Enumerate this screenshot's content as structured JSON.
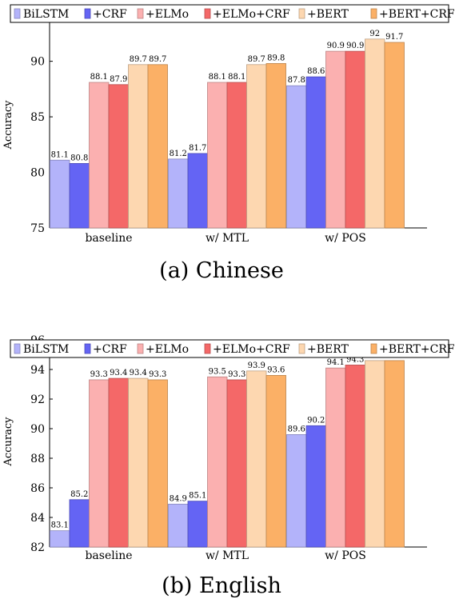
{
  "chart_data": [
    {
      "type": "bar",
      "caption": "(a) Chinese",
      "ylabel": "Accuracy",
      "ylim": [
        75,
        93.5
      ],
      "yticks": [
        75,
        80,
        85,
        90
      ],
      "categories": [
        "baseline",
        "w/ MTL",
        "w/ POS"
      ],
      "legend_position": "top",
      "series": [
        {
          "name": "BiLSTM",
          "color": "#b3b3fa",
          "values": [
            81.1,
            81.2,
            87.8
          ]
        },
        {
          "name": "+CRF",
          "color": "#6464f4",
          "values": [
            80.8,
            81.7,
            88.6
          ]
        },
        {
          "name": "+ELMo",
          "color": "#fbb0b0",
          "values": [
            88.1,
            88.1,
            90.9
          ]
        },
        {
          "name": "+ELMo+CRF",
          "color": "#f46868",
          "values": [
            87.9,
            88.1,
            90.9
          ]
        },
        {
          "name": "+BERT",
          "color": "#fdd7b0",
          "values": [
            89.7,
            89.7,
            92
          ]
        },
        {
          "name": "+BERT+CRF",
          "color": "#fbb066",
          "values": [
            89.7,
            89.8,
            91.7
          ]
        }
      ]
    },
    {
      "type": "bar",
      "caption": "(b) English",
      "ylabel": "Accuracy",
      "ylim": [
        82,
        96
      ],
      "yticks": [
        82,
        84,
        86,
        88,
        90,
        92,
        94,
        96
      ],
      "categories": [
        "baseline",
        "w/ MTL",
        "w/ POS"
      ],
      "legend_position": "top",
      "series": [
        {
          "name": "BiLSTM",
          "color": "#b3b3fa",
          "values": [
            83.1,
            84.9,
            89.6
          ]
        },
        {
          "name": "+CRF",
          "color": "#6464f4",
          "values": [
            85.2,
            85.1,
            90.2
          ]
        },
        {
          "name": "+ELMo",
          "color": "#fbb0b0",
          "values": [
            93.3,
            93.5,
            94.1
          ]
        },
        {
          "name": "+ELMo+CRF",
          "color": "#f46868",
          "values": [
            93.4,
            93.3,
            94.3
          ]
        },
        {
          "name": "+BERT",
          "color": "#fdd7b0",
          "values": [
            93.4,
            93.9,
            94.6
          ]
        },
        {
          "name": "+BERT+CRF",
          "color": "#fbb066",
          "values": [
            93.3,
            93.6,
            94.6
          ]
        }
      ]
    }
  ]
}
